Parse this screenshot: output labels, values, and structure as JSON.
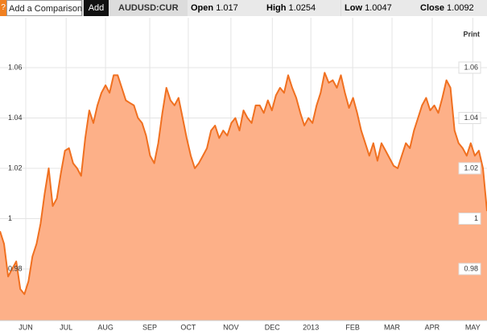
{
  "quote": {
    "comparison_placeholder": "Add a Comparison",
    "add_button": "Add",
    "symbol": "AUDUSD:CUR",
    "open_label": "Open",
    "open": 1.017,
    "high_label": "High",
    "high": 1.0254,
    "low_label": "Low",
    "low": 1.0047,
    "close_label": "Close",
    "close": 1.0092,
    "print": "Print"
  },
  "chart_data": {
    "type": "area",
    "color": "#f07020",
    "fill": "#fdb088",
    "grid": true,
    "values": [
      0.995,
      0.99,
      0.977,
      0.98,
      0.983,
      0.972,
      0.97,
      0.975,
      0.985,
      0.99,
      0.998,
      1.01,
      1.02,
      1.005,
      1.008,
      1.018,
      1.027,
      1.028,
      1.022,
      1.02,
      1.017,
      1.032,
      1.043,
      1.038,
      1.045,
      1.05,
      1.053,
      1.05,
      1.057,
      1.057,
      1.052,
      1.047,
      1.046,
      1.045,
      1.04,
      1.038,
      1.033,
      1.025,
      1.022,
      1.03,
      1.042,
      1.052,
      1.047,
      1.045,
      1.048,
      1.04,
      1.032,
      1.025,
      1.02,
      1.022,
      1.025,
      1.028,
      1.035,
      1.037,
      1.032,
      1.035,
      1.033,
      1.038,
      1.04,
      1.035,
      1.043,
      1.04,
      1.038,
      1.045,
      1.045,
      1.042,
      1.047,
      1.043,
      1.049,
      1.052,
      1.05,
      1.057,
      1.052,
      1.048,
      1.042,
      1.037,
      1.04,
      1.038,
      1.045,
      1.05,
      1.058,
      1.054,
      1.055,
      1.052,
      1.057,
      1.05,
      1.044,
      1.048,
      1.042,
      1.035,
      1.03,
      1.025,
      1.03,
      1.023,
      1.03,
      1.027,
      1.024,
      1.021,
      1.02,
      1.025,
      1.03,
      1.028,
      1.035,
      1.04,
      1.045,
      1.048,
      1.043,
      1.045,
      1.042,
      1.048,
      1.055,
      1.052,
      1.035,
      1.03,
      1.028,
      1.025,
      1.03,
      1.025,
      1.027,
      1.02,
      1.003
    ],
    "xlim": [
      0,
      120
    ],
    "xticks": [
      {
        "value": 6.35,
        "label": "JUN"
      },
      {
        "value": 16.3,
        "label": "JUL"
      },
      {
        "value": 26,
        "label": "AUG"
      },
      {
        "value": 36.9,
        "label": "SEP"
      },
      {
        "value": 46.4,
        "label": "OCT"
      },
      {
        "value": 56.9,
        "label": "NOV"
      },
      {
        "value": 67.1,
        "label": "DEC"
      },
      {
        "value": 76.6,
        "label": "2013"
      },
      {
        "value": 86.9,
        "label": "FEB"
      },
      {
        "value": 96.6,
        "label": "MAR"
      },
      {
        "value": 106.5,
        "label": "APR"
      },
      {
        "value": 116.5,
        "label": "MAY"
      }
    ],
    "ylim": [
      0.96,
      1.08
    ],
    "yticks": [
      0.98,
      1,
      1.02,
      1.04,
      1.06
    ]
  }
}
